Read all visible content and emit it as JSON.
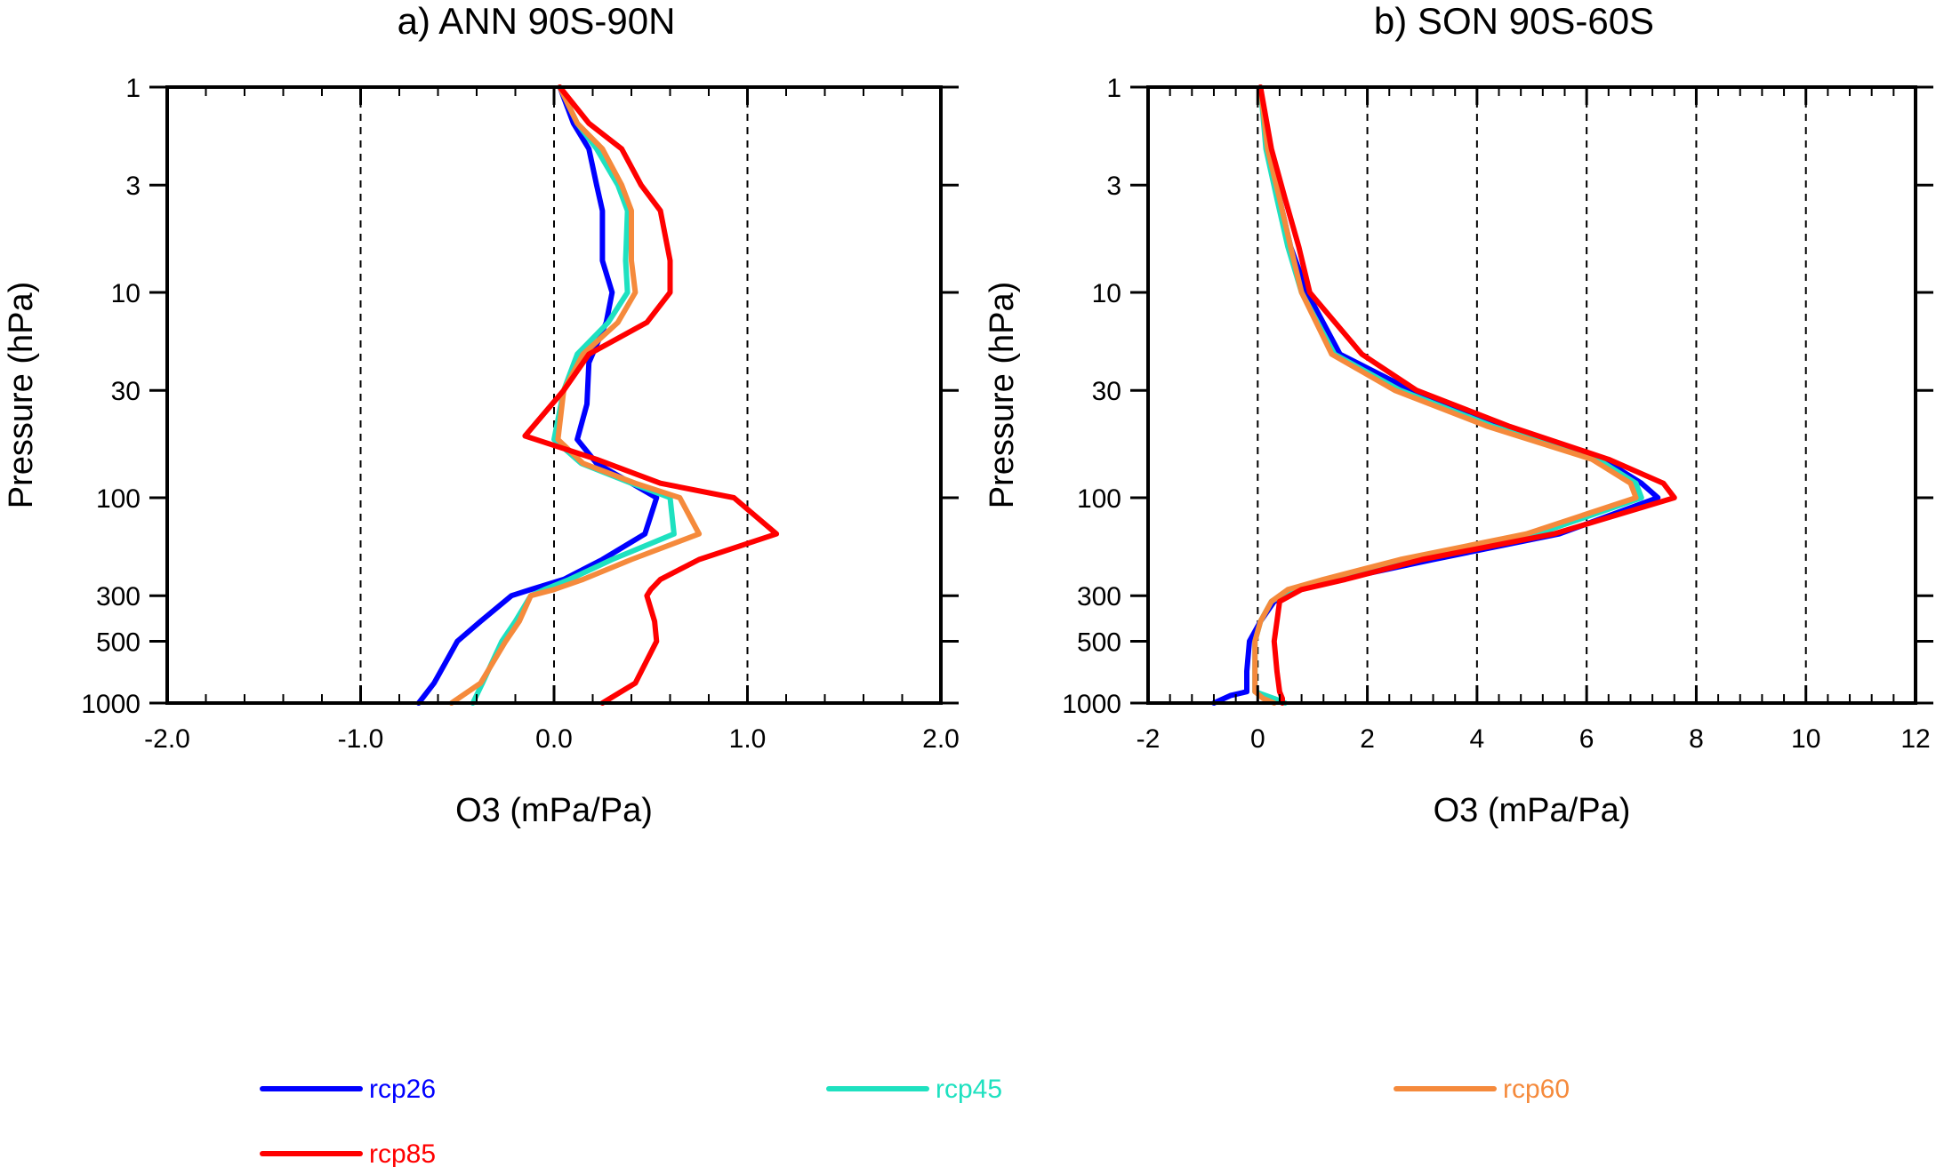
{
  "chart_data": [
    {
      "type": "line",
      "title": "a)  ANN 90S-90N",
      "xlabel": "O3 (mPa/Pa)",
      "ylabel": "Pressure (hPa)",
      "xlim": [
        -2.0,
        2.0
      ],
      "ylim": [
        1000,
        1
      ],
      "y_scale": "log",
      "x_ticks": [
        -2.0,
        -1.0,
        0.0,
        1.0,
        2.0
      ],
      "x_tick_labels": [
        "-2.0",
        "-1.0",
        "0.0",
        "1.0",
        "2.0"
      ],
      "y_ticks": [
        1,
        3,
        10,
        30,
        100,
        300,
        500,
        1000
      ],
      "y_tick_labels": [
        "1",
        "3",
        "10",
        "30",
        "100",
        "300",
        "500",
        "1000"
      ],
      "vertical_dashed_lines": [
        -1.0,
        0.0,
        1.0
      ],
      "grid": false,
      "series": [
        {
          "name": "rcp26",
          "color": "#0000ff",
          "x": [
            0.03,
            0.1,
            0.18,
            0.22,
            0.25,
            0.25,
            0.3,
            0.27,
            0.18,
            0.17,
            0.12,
            0.22,
            0.4,
            0.53,
            0.47,
            0.25,
            0.05,
            -0.12,
            -0.22,
            -0.38,
            -0.5,
            -0.62,
            -0.7
          ],
          "y": [
            1,
            1.5,
            2,
            3,
            4,
            7,
            10,
            14,
            22,
            35,
            52,
            68,
            85,
            100,
            150,
            200,
            250,
            280,
            300,
            400,
            500,
            800,
            1000
          ]
        },
        {
          "name": "rcp45",
          "color": "#1ee1c0",
          "x": [
            0.03,
            0.12,
            0.22,
            0.33,
            0.38,
            0.37,
            0.38,
            0.28,
            0.12,
            0.05,
            0.0,
            0.14,
            0.4,
            0.6,
            0.62,
            0.3,
            0.08,
            -0.05,
            -0.12,
            -0.2,
            -0.27,
            -0.37,
            -0.42
          ],
          "y": [
            1,
            1.5,
            2,
            3,
            4,
            7,
            10,
            14,
            20,
            30,
            52,
            68,
            85,
            100,
            150,
            200,
            250,
            280,
            300,
            400,
            500,
            800,
            1000
          ]
        },
        {
          "name": "rcp60",
          "color": "#f58a3c",
          "x": [
            0.03,
            0.12,
            0.25,
            0.35,
            0.4,
            0.4,
            0.42,
            0.33,
            0.15,
            0.05,
            0.02,
            0.15,
            0.42,
            0.65,
            0.75,
            0.4,
            0.15,
            0.0,
            -0.12,
            -0.18,
            -0.25,
            -0.38,
            -0.53
          ],
          "y": [
            1,
            1.5,
            2,
            3,
            4,
            7,
            10,
            14,
            20,
            30,
            52,
            68,
            85,
            100,
            150,
            200,
            250,
            280,
            300,
            400,
            500,
            800,
            1000
          ]
        },
        {
          "name": "rcp85",
          "color": "#ff0000",
          "x": [
            0.03,
            0.18,
            0.35,
            0.45,
            0.55,
            0.6,
            0.6,
            0.48,
            0.18,
            0.05,
            -0.15,
            0.22,
            0.55,
            0.93,
            1.15,
            0.75,
            0.55,
            0.5,
            0.48,
            0.52,
            0.53,
            0.42,
            0.25
          ],
          "y": [
            1,
            1.5,
            2,
            3,
            4,
            7,
            10,
            14,
            20,
            30,
            50,
            65,
            85,
            100,
            150,
            200,
            250,
            280,
            300,
            400,
            500,
            800,
            1000
          ]
        }
      ]
    },
    {
      "type": "line",
      "title": "b)  SON 90S-60S",
      "xlabel": "O3 (mPa/Pa)",
      "ylabel": "Pressure (hPa)",
      "xlim": [
        -2,
        12
      ],
      "ylim": [
        1000,
        1
      ],
      "y_scale": "log",
      "x_ticks": [
        -2,
        0,
        2,
        4,
        6,
        8,
        10,
        12
      ],
      "x_tick_labels": [
        "-2",
        "0",
        "2",
        "4",
        "6",
        "8",
        "10",
        "12"
      ],
      "y_ticks": [
        1,
        3,
        10,
        30,
        100,
        300,
        500,
        1000
      ],
      "y_tick_labels": [
        "1",
        "3",
        "10",
        "30",
        "100",
        "300",
        "500",
        "1000"
      ],
      "vertical_dashed_lines": [
        0,
        2,
        4,
        6,
        8,
        10
      ],
      "grid": false,
      "series": [
        {
          "name": "rcp26",
          "color": "#0000ff",
          "x": [
            0.05,
            0.2,
            0.4,
            0.6,
            0.9,
            1.5,
            2.8,
            4.5,
            6.3,
            7.0,
            7.3,
            5.5,
            3.2,
            1.5,
            0.7,
            0.3,
            0.05,
            -0.15,
            -0.2,
            -0.2,
            -0.5,
            -0.8
          ],
          "y": [
            1,
            2,
            3.5,
            6,
            10,
            20,
            30,
            45,
            65,
            85,
            100,
            150,
            200,
            250,
            280,
            320,
            400,
            500,
            700,
            880,
            920,
            1000
          ]
        },
        {
          "name": "rcp45",
          "color": "#1ee1c0",
          "x": [
            0.05,
            0.15,
            0.35,
            0.55,
            0.8,
            1.4,
            2.6,
            4.3,
            6.2,
            6.9,
            7.0,
            5.1,
            2.7,
            1.3,
            0.6,
            0.25,
            0.05,
            -0.05,
            -0.05,
            -0.05,
            0.3,
            0.5
          ],
          "y": [
            1,
            2,
            3.5,
            6,
            10,
            20,
            30,
            45,
            65,
            85,
            100,
            150,
            200,
            250,
            280,
            320,
            400,
            500,
            700,
            880,
            950,
            1000
          ]
        },
        {
          "name": "rcp60",
          "color": "#f58a3c",
          "x": [
            0.05,
            0.18,
            0.4,
            0.6,
            0.8,
            1.35,
            2.5,
            4.2,
            6.1,
            6.8,
            6.9,
            4.9,
            2.6,
            1.2,
            0.55,
            0.25,
            0.05,
            -0.05,
            -0.05,
            -0.05,
            0.1,
            0.3
          ],
          "y": [
            1,
            2,
            3.5,
            6,
            10,
            20,
            30,
            45,
            65,
            85,
            100,
            150,
            200,
            250,
            280,
            320,
            400,
            500,
            700,
            880,
            950,
            1000
          ]
        },
        {
          "name": "rcp85",
          "color": "#ff0000",
          "x": [
            0.05,
            0.25,
            0.5,
            0.75,
            0.95,
            1.9,
            2.9,
            4.6,
            6.4,
            7.4,
            7.6,
            5.4,
            3.0,
            1.6,
            0.8,
            0.4,
            0.35,
            0.3,
            0.35,
            0.4,
            0.45,
            0.45
          ],
          "y": [
            1,
            2,
            3.5,
            6,
            10,
            20,
            30,
            45,
            65,
            85,
            100,
            150,
            200,
            250,
            280,
            320,
            400,
            500,
            700,
            880,
            950,
            1000
          ]
        }
      ]
    }
  ],
  "legend": {
    "placement": "bottom",
    "items": [
      {
        "name": "rcp26",
        "color": "#0000ff"
      },
      {
        "name": "rcp45",
        "color": "#1ee1c0"
      },
      {
        "name": "rcp60",
        "color": "#f58a3c"
      },
      {
        "name": "rcp85",
        "color": "#ff0000"
      }
    ]
  }
}
